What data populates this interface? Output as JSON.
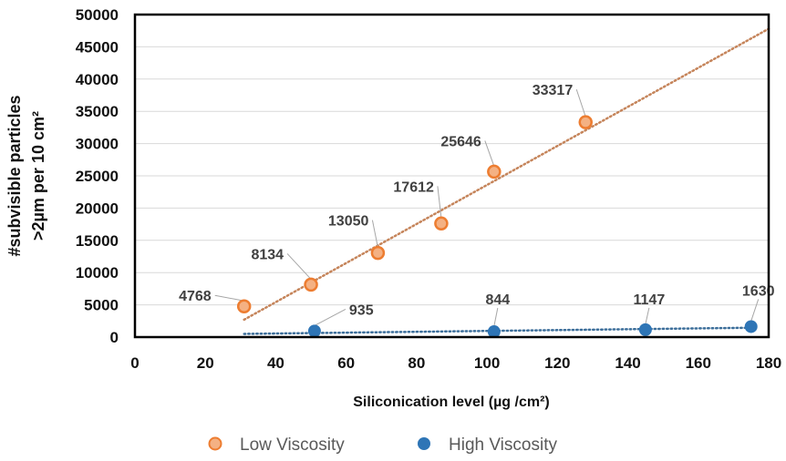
{
  "chart_data": {
    "type": "scatter",
    "title": "",
    "xlabel": "Siliconication level (µg /cm²)",
    "ylabel_line1": "#subvisible particles",
    "ylabel_line2": ">2µm per 10 cm²",
    "xlim": [
      0,
      180
    ],
    "ylim": [
      0,
      50000
    ],
    "x_ticks": [
      0,
      20,
      40,
      60,
      80,
      100,
      120,
      140,
      160,
      180
    ],
    "y_ticks": [
      0,
      5000,
      10000,
      15000,
      20000,
      25000,
      30000,
      35000,
      40000,
      45000,
      50000
    ],
    "grid": "horizontal",
    "legend_position": "bottom",
    "series": [
      {
        "name": "Low Viscosity",
        "color": "#ED7D31",
        "x": [
          31,
          50,
          69,
          87,
          102,
          128
        ],
        "y": [
          4768,
          8134,
          13050,
          17612,
          25646,
          33317
        ],
        "labels": [
          "4768",
          "8134",
          "13050",
          "17612",
          "25646",
          "33317"
        ],
        "trendline": {
          "type": "linear",
          "style": "dotted",
          "from_x": 31,
          "to_x": 180,
          "y_start": 2700,
          "y_end": 47800
        }
      },
      {
        "name": "High Viscosity",
        "color": "#2E75B6",
        "x": [
          51,
          102,
          145,
          175
        ],
        "y": [
          935,
          844,
          1147,
          1630
        ],
        "labels": [
          "935",
          "844",
          "1147",
          "1630"
        ],
        "trendline": {
          "type": "linear",
          "style": "dotted",
          "from_x": 31,
          "to_x": 175,
          "y_start": 500,
          "y_end": 1450
        }
      }
    ]
  }
}
